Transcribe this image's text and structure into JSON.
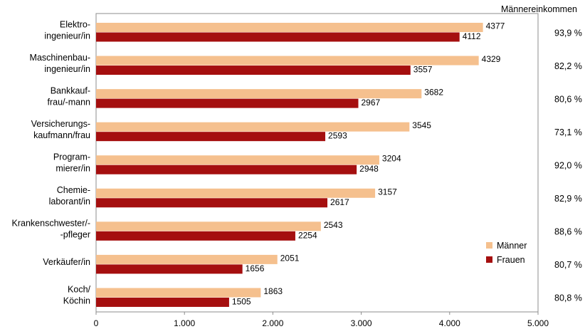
{
  "chart_data": {
    "type": "bar",
    "orientation": "horizontal",
    "categories": [
      [
        "Elektro-",
        "ingenieur/in"
      ],
      [
        "Maschinenbau-",
        "ingenieur/in"
      ],
      [
        "Bankkauf-",
        "frau/-mann"
      ],
      [
        "Versicherungs-",
        "kaufmann/frau"
      ],
      [
        "Program-",
        "mierer/in"
      ],
      [
        "Chemie-",
        "laborant/in"
      ],
      [
        "Krankenschwester/-",
        "-pfleger"
      ],
      [
        "Verkäufer/in"
      ],
      [
        "Koch/",
        "Köchin"
      ]
    ],
    "series": [
      {
        "name": "Männer",
        "color": "#f5c08e",
        "values": [
          4377,
          4329,
          3682,
          3545,
          3204,
          3157,
          2543,
          2051,
          1863
        ]
      },
      {
        "name": "Frauen",
        "color": "#a50f0f",
        "values": [
          4112,
          3557,
          2967,
          2593,
          2948,
          2617,
          2254,
          1656,
          1505
        ]
      }
    ],
    "xlim": [
      0,
      5000
    ],
    "xticks": [
      0,
      1000,
      2000,
      3000,
      4000,
      5000
    ],
    "xtick_labels": [
      "0",
      "1.000",
      "2.000",
      "3.000",
      "4.000",
      "5.000"
    ],
    "ratio_header": "Männereinkommen",
    "ratios": [
      "93,9 %",
      "82,2 %",
      "80,6 %",
      "73,1 %",
      "92,0 %",
      "82,9 %",
      "88,6 %",
      "80,7 %",
      "80,8 %"
    ],
    "legend_position": "bottom-right",
    "grid": false
  }
}
